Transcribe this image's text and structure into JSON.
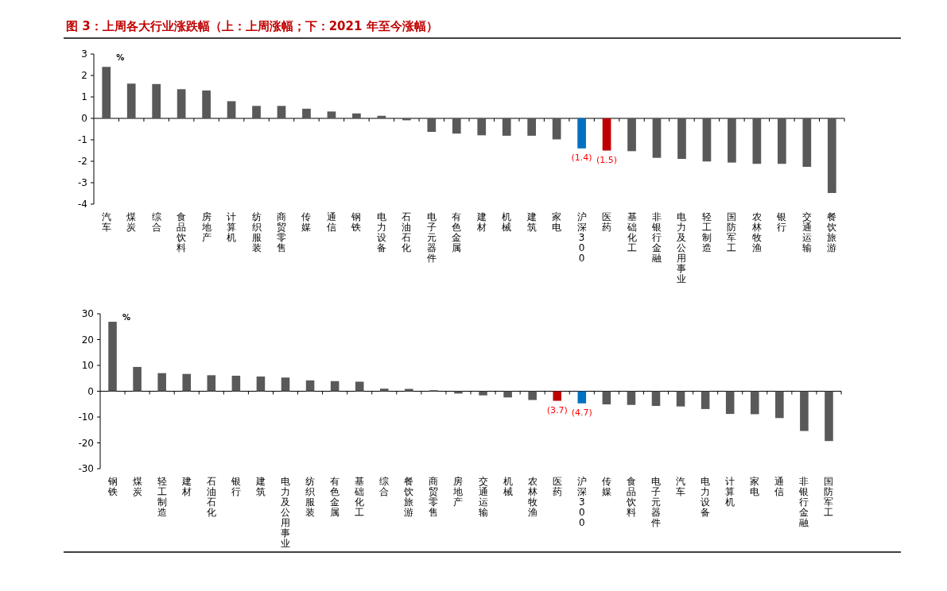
{
  "chart_data": [
    {
      "type": "bar",
      "title": "图 3：上周各大行业涨跌幅（上：上周涨幅；下：2021 年至今涨幅）",
      "ylabel": "%",
      "categories": [
        "汽车",
        "煤炭",
        "综合",
        "食品饮料",
        "房地产",
        "计算机",
        "纺织服装",
        "商贸零售",
        "传媒",
        "通信",
        "钢铁",
        "电力设备",
        "石油石化",
        "电子元器件",
        "有色金属",
        "建材",
        "机械",
        "建筑",
        "家电",
        "沪深300",
        "医药",
        "基础化工",
        "非银行金融",
        "电力及公用事业",
        "轻工制造",
        "国防军工",
        "农林牧渔",
        "银行",
        "交通运输",
        "餐饮旅游"
      ],
      "values": [
        2.4,
        1.62,
        1.6,
        1.36,
        1.3,
        0.8,
        0.58,
        0.58,
        0.45,
        0.32,
        0.23,
        0.12,
        -0.09,
        -0.63,
        -0.71,
        -0.79,
        -0.81,
        -0.81,
        -0.98,
        -1.4,
        -1.5,
        -1.53,
        -1.84,
        -1.89,
        -2.01,
        -2.06,
        -2.12,
        -2.12,
        -2.26,
        -3.48
      ],
      "colors": [
        "#595959",
        "#595959",
        "#595959",
        "#595959",
        "#595959",
        "#595959",
        "#595959",
        "#595959",
        "#595959",
        "#595959",
        "#595959",
        "#595959",
        "#595959",
        "#595959",
        "#595959",
        "#595959",
        "#595959",
        "#595959",
        "#595959",
        "#0070c0",
        "#c00000",
        "#595959",
        "#595959",
        "#595959",
        "#595959",
        "#595959",
        "#595959",
        "#595959",
        "#595959",
        "#595959"
      ],
      "value_labels": [
        null,
        null,
        null,
        null,
        null,
        null,
        null,
        null,
        null,
        null,
        null,
        null,
        null,
        null,
        null,
        null,
        null,
        null,
        null,
        "(1.4)",
        "(1.5)",
        null,
        null,
        null,
        null,
        null,
        null,
        null,
        null,
        null
      ],
      "ylim": [
        -4,
        3
      ],
      "yticks": [
        -4,
        -3,
        -2,
        -1,
        0,
        1,
        2,
        3
      ]
    },
    {
      "type": "bar",
      "ylabel": "%",
      "categories": [
        "钢铁",
        "煤炭",
        "轻工制造",
        "建材",
        "石油石化",
        "银行",
        "建筑",
        "电力及公用事业",
        "纺织服装",
        "有色金属",
        "基础化工",
        "综合",
        "餐饮旅游",
        "商贸零售",
        "房地产",
        "交通运输",
        "机械",
        "农林牧渔",
        "医药",
        "沪深300",
        "传媒",
        "食品饮料",
        "电子元器件",
        "汽车",
        "电力设备",
        "计算机",
        "家电",
        "通信",
        "非银行金融",
        "国防军工"
      ],
      "values": [
        26.9,
        9.4,
        7.0,
        6.7,
        6.2,
        6.0,
        5.7,
        5.3,
        4.2,
        3.9,
        3.7,
        1.0,
        0.9,
        0.4,
        -0.9,
        -1.6,
        -2.4,
        -3.4,
        -3.7,
        -4.7,
        -5.1,
        -5.3,
        -5.7,
        -5.9,
        -6.9,
        -8.8,
        -8.9,
        -10.4,
        -15.4,
        -19.3
      ],
      "colors": [
        "#595959",
        "#595959",
        "#595959",
        "#595959",
        "#595959",
        "#595959",
        "#595959",
        "#595959",
        "#595959",
        "#595959",
        "#595959",
        "#595959",
        "#595959",
        "#595959",
        "#595959",
        "#595959",
        "#595959",
        "#595959",
        "#c00000",
        "#0070c0",
        "#595959",
        "#595959",
        "#595959",
        "#595959",
        "#595959",
        "#595959",
        "#595959",
        "#595959",
        "#595959",
        "#595959"
      ],
      "value_labels": [
        null,
        null,
        null,
        null,
        null,
        null,
        null,
        null,
        null,
        null,
        null,
        null,
        null,
        null,
        null,
        null,
        null,
        null,
        "(3.7)",
        "(4.7)",
        null,
        null,
        null,
        null,
        null,
        null,
        null,
        null,
        null,
        null
      ],
      "ylim": [
        -30,
        30
      ],
      "yticks": [
        -30,
        -20,
        -10,
        0,
        10,
        20,
        30
      ]
    }
  ]
}
